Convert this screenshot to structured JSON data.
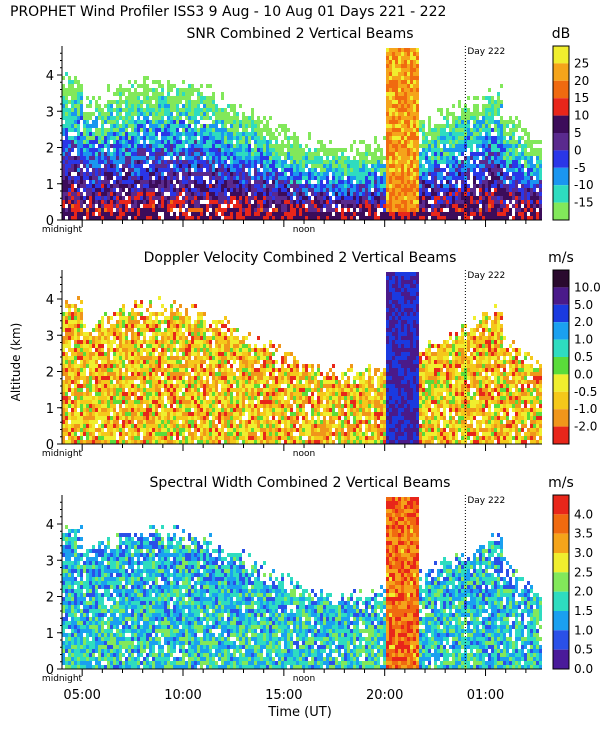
{
  "header": "PROPHET Wind Profiler ISS3   9 Aug - 10 Aug 01 Days 221 - 222",
  "shared": {
    "ylabel": "Altitude (km)",
    "xlabel": "Time (UT)",
    "day_marker": "Day 222",
    "midnight_label": "midnight",
    "noon_label": "noon",
    "time_ticks": [
      "05:00",
      "10:00",
      "15:00",
      "20:00",
      "01:00"
    ],
    "alt_ticks": [
      "0",
      "1",
      "2",
      "3",
      "4"
    ]
  },
  "chart_data": [
    {
      "type": "heatmap",
      "title": "SNR Combined 2 Vertical Beams",
      "unit": "dB",
      "xlabel": "Time (UT)",
      "ylabel": "Altitude (km)",
      "ylim": [
        0,
        4.8
      ],
      "x_range_hours_ut": [
        4.0,
        27.8
      ],
      "colorbar_ticks": [
        "25",
        "20",
        "15",
        "10",
        "5",
        "0",
        "-5",
        "-10",
        "-15"
      ],
      "colorbar_colors": [
        "#f0ee2e",
        "#f5a41a",
        "#f06a10",
        "#e8261a",
        "#3c0c5a",
        "#5a2a8e",
        "#2a36e8",
        "#1a96f0",
        "#2edcc0",
        "#82e85a"
      ],
      "features": [
        "strong echo column 20:00-21:30 reaching above 4.5 km",
        "Day 222 boundary near 00:00 UT"
      ]
    },
    {
      "type": "heatmap",
      "title": "Doppler Velocity Combined 2 Vertical Beams",
      "unit": "m/s",
      "xlabel": "Time (UT)",
      "ylabel": "Altitude (km)",
      "ylim": [
        0,
        4.8
      ],
      "x_range_hours_ut": [
        4.0,
        27.8
      ],
      "colorbar_ticks": [
        "10.0",
        "5.0",
        "2.0",
        "1.0",
        "0.5",
        "0.0",
        "-0.5",
        "-1.0",
        "-2.0"
      ],
      "colorbar_colors": [
        "#2a0a2e",
        "#4a1a8a",
        "#1a3ae0",
        "#1aa0f0",
        "#2edcc0",
        "#5adc3a",
        "#f0ee2e",
        "#f5c81a",
        "#f0961a",
        "#e8261a"
      ],
      "features": [
        "downward velocity column 20:00-21:00",
        "mostly near-zero to slightly negative elsewhere"
      ]
    },
    {
      "type": "heatmap",
      "title": "Spectral Width Combined 2 Vertical Beams",
      "unit": "m/s",
      "xlabel": "Time (UT)",
      "ylabel": "Altitude (km)",
      "ylim": [
        0,
        4.8
      ],
      "x_range_hours_ut": [
        4.0,
        27.8
      ],
      "colorbar_ticks": [
        "4.0",
        "3.5",
        "3.0",
        "2.5",
        "2.0",
        "1.5",
        "1.0",
        "0.5",
        "0.0"
      ],
      "colorbar_colors": [
        "#e8261a",
        "#f06a10",
        "#f5a41a",
        "#f0ee2e",
        "#82e85a",
        "#2edcc0",
        "#1aa0f0",
        "#2a50e8",
        "#4a1a9a"
      ],
      "features": [
        "broad widths in 20:00-21:30 column",
        "1.0-2.0 m/s typical"
      ]
    }
  ]
}
